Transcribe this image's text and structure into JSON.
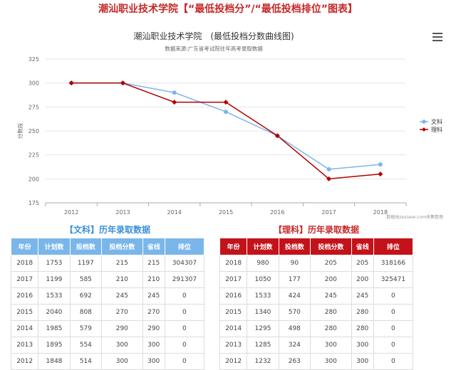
{
  "page": {
    "title": "潮汕职业技术学院【“最低投档分”/“最低投档排位”图表】"
  },
  "chart_data": {
    "type": "line",
    "title": "潮汕职业技术学院　(最低投档分数曲线图)",
    "subtitle": "数据来源:广东省考试院往年高考录取数据",
    "ylabel": "分数段",
    "xlabel": "",
    "categories": [
      "2012",
      "2013",
      "2014",
      "2015",
      "2016",
      "2017",
      "2018"
    ],
    "ylim": [
      175,
      325
    ],
    "yticks": [
      175,
      200,
      225,
      250,
      275,
      300,
      325
    ],
    "grid": true,
    "legend_position": "right",
    "credit": "数据由zexiaoe.com收集整理",
    "series": [
      {
        "name": "文科",
        "color": "#7cb5ec",
        "values": [
          300,
          300,
          290,
          270,
          245,
          210,
          215
        ]
      },
      {
        "name": "理科",
        "color": "#b30000",
        "values": [
          300,
          300,
          280,
          280,
          245,
          200,
          205
        ]
      }
    ]
  },
  "tables": {
    "headers": [
      "年份",
      "计划数",
      "投档数",
      "投档分数",
      "省线",
      "排位"
    ],
    "wen": {
      "title": "【文科】历年录取数据",
      "rows": [
        [
          "2018",
          "1753",
          "1197",
          "215",
          "215",
          "304307"
        ],
        [
          "2017",
          "1199",
          "585",
          "210",
          "210",
          "291307"
        ],
        [
          "2016",
          "1533",
          "692",
          "245",
          "245",
          "0"
        ],
        [
          "2015",
          "2040",
          "808",
          "270",
          "270",
          "0"
        ],
        [
          "2014",
          "1985",
          "579",
          "290",
          "290",
          "0"
        ],
        [
          "2013",
          "1895",
          "554",
          "300",
          "300",
          "0"
        ],
        [
          "2012",
          "1848",
          "514",
          "300",
          "300",
          "0"
        ]
      ]
    },
    "li": {
      "title": "【理科】历年录取数据",
      "rows": [
        [
          "2018",
          "980",
          "90",
          "205",
          "205",
          "318166"
        ],
        [
          "2017",
          "1050",
          "177",
          "200",
          "200",
          "325471"
        ],
        [
          "2016",
          "1533",
          "424",
          "245",
          "245",
          "0"
        ],
        [
          "2015",
          "1340",
          "570",
          "280",
          "280",
          "0"
        ],
        [
          "2014",
          "1295",
          "498",
          "280",
          "280",
          "0"
        ],
        [
          "2013",
          "1285",
          "324",
          "300",
          "300",
          "0"
        ],
        [
          "2012",
          "1232",
          "263",
          "300",
          "300",
          "0"
        ]
      ]
    }
  }
}
